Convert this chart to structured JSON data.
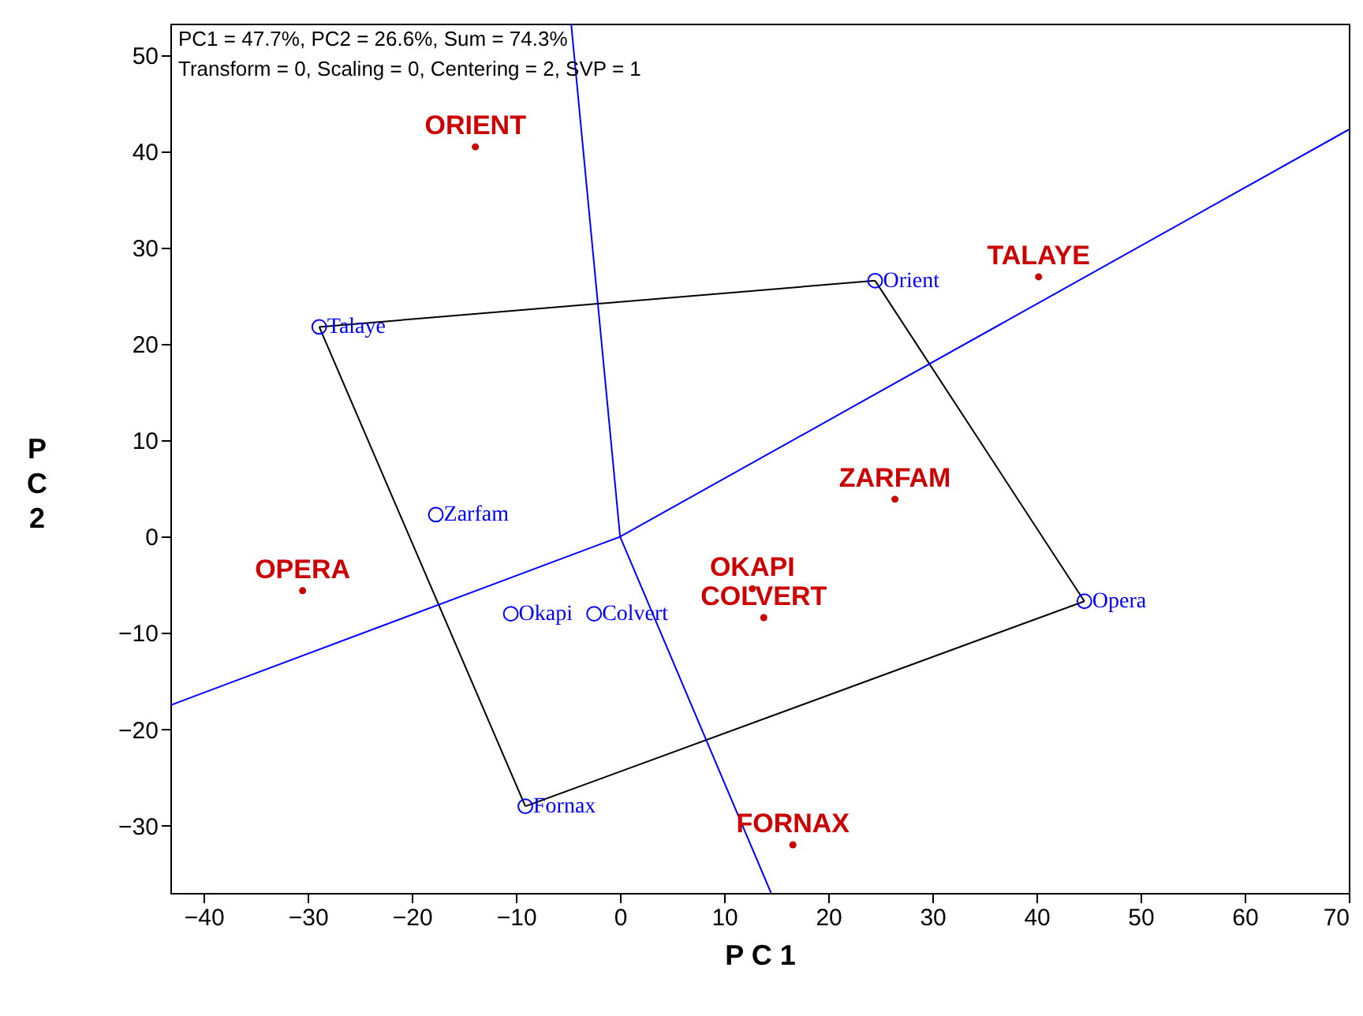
{
  "chart_data": {
    "type": "scatter",
    "xlabel": "P C 1",
    "ylabel": "P C 2",
    "annotations": [
      "PC1 = 47.7%, PC2 = 26.6%, Sum = 74.3%",
      "Transform = 0, Scaling = 0, Centering = 2, SVP = 1"
    ],
    "xlim": [
      -43.2,
      70
    ],
    "ylim": [
      -37,
      53.3
    ],
    "xticks": [
      -40,
      -30,
      -20,
      -10,
      0,
      10,
      20,
      30,
      40,
      50,
      60,
      70
    ],
    "yticks": [
      -30,
      -20,
      -10,
      0,
      10,
      20,
      30,
      40,
      50
    ],
    "grid": false,
    "series": [
      {
        "type": "line",
        "color": "#000000",
        "x": [
          -28.9,
          24.5
        ],
        "values": [
          21.8,
          26.6
        ]
      },
      {
        "type": "line",
        "color": "#000000",
        "x": [
          24.5,
          44.6
        ],
        "values": [
          26.6,
          -6.7
        ]
      },
      {
        "type": "line",
        "color": "#000000",
        "x": [
          44.6,
          -9.1
        ],
        "values": [
          -6.7,
          -28.0
        ]
      },
      {
        "type": "line",
        "color": "#000000",
        "x": [
          -9.1,
          -28.9
        ],
        "values": [
          -28.0,
          21.8
        ]
      },
      {
        "type": "line",
        "color": "#0000ff",
        "x": [
          -43.2,
          0,
          70
        ],
        "values": [
          -17.5,
          0,
          42.3
        ]
      },
      {
        "type": "line",
        "color": "#0000ff",
        "x": [
          -4.7,
          0,
          14.5
        ],
        "values": [
          53.3,
          0,
          -37
        ]
      },
      {
        "marker": "circle",
        "color": "#0000ff",
        "x": [
          24.5,
          -28.9,
          44.6,
          -9.1,
          -17.7,
          -10.5,
          -2.5
        ],
        "values": [
          26.6,
          21.8,
          -6.7,
          -28.0,
          2.3,
          -8.0,
          -8.0
        ],
        "value_labels": [
          "Orient",
          "Talaye",
          "Opera",
          "Fornax",
          "Zarfam",
          "Okapi",
          "Colvert"
        ]
      },
      {
        "type": "scatter",
        "marker": "circle",
        "color": "#cc0000",
        "x": [
          -13.9,
          40.2,
          26.4,
          12.7,
          13.8,
          -30.5,
          16.6
        ],
        "values": [
          40.5,
          27.0,
          3.9,
          -5.4,
          -8.4,
          -5.6,
          -32.0
        ],
        "value_labels": [
          "ORIENT",
          "TALAYE",
          "ZARFAM",
          "OKAPI",
          "COLVERT",
          "OPERA",
          "FORNAX"
        ]
      }
    ]
  }
}
